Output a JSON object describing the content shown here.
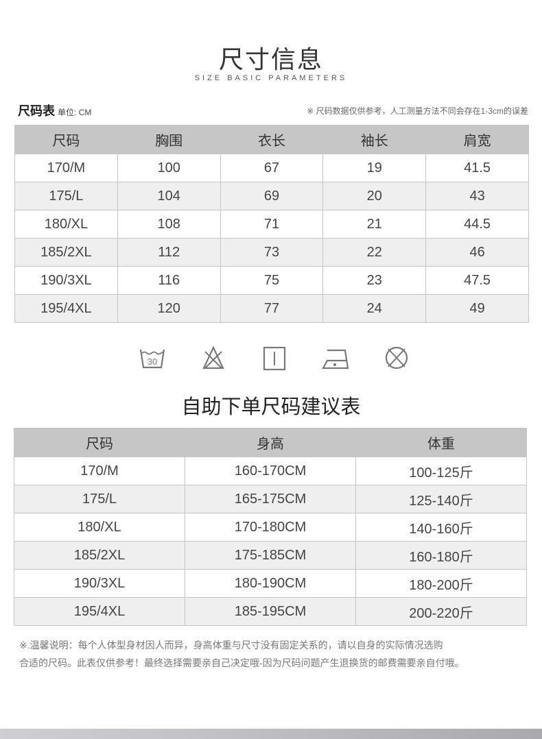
{
  "header": {
    "title": "尺寸信息",
    "subtitle": "SIZE BASIC PARAMETERS"
  },
  "size_table": {
    "label": "尺码表",
    "unit": "单位: CM",
    "note": "※ 尺码数据仅供参考，人工测量方法不同会存在1-3cm的误差",
    "columns": [
      "尺码",
      "胸围",
      "衣长",
      "袖长",
      "肩宽"
    ],
    "rows": [
      [
        "170/M",
        "100",
        "67",
        "19",
        "41.5"
      ],
      [
        "175/L",
        "104",
        "69",
        "20",
        "43"
      ],
      [
        "180/XL",
        "108",
        "71",
        "21",
        "44.5"
      ],
      [
        "185/2XL",
        "112",
        "73",
        "22",
        "46"
      ],
      [
        "190/3XL",
        "116",
        "75",
        "23",
        "47.5"
      ],
      [
        "195/4XL",
        "120",
        "77",
        "24",
        "49"
      ]
    ]
  },
  "care_icons": [
    "wash-30-icon",
    "no-bleach-icon",
    "hang-dry-icon",
    "iron-low-icon",
    "no-dry-clean-icon"
  ],
  "care_wash_temp": "30",
  "recommend_table": {
    "title": "自助下单尺码建议表",
    "columns": [
      "尺码",
      "身高",
      "体重"
    ],
    "rows": [
      [
        "170/M",
        "160-170CM",
        "100-125斤"
      ],
      [
        "175/L",
        "165-175CM",
        "125-140斤"
      ],
      [
        "180/XL",
        "170-180CM",
        "140-160斤"
      ],
      [
        "185/2XL",
        "175-185CM",
        "160-180斤"
      ],
      [
        "190/3XL",
        "180-190CM",
        "180-200斤"
      ],
      [
        "195/4XL",
        "185-195CM",
        "200-220斤"
      ]
    ]
  },
  "notes": [
    "※.温馨说明：每个人体型身材因人而异，身高体重与尺寸没有固定关系的，请以自身的实际情况选购",
    "合适的尺码。此表仅供参考！最终选择需要亲自己决定哦-因为尺码问题产生退换货的邮费需要亲自付哦。"
  ],
  "colors": {
    "header_bg": "#c6c6c6",
    "alt_row": "#efefef",
    "icon": "#777777"
  }
}
